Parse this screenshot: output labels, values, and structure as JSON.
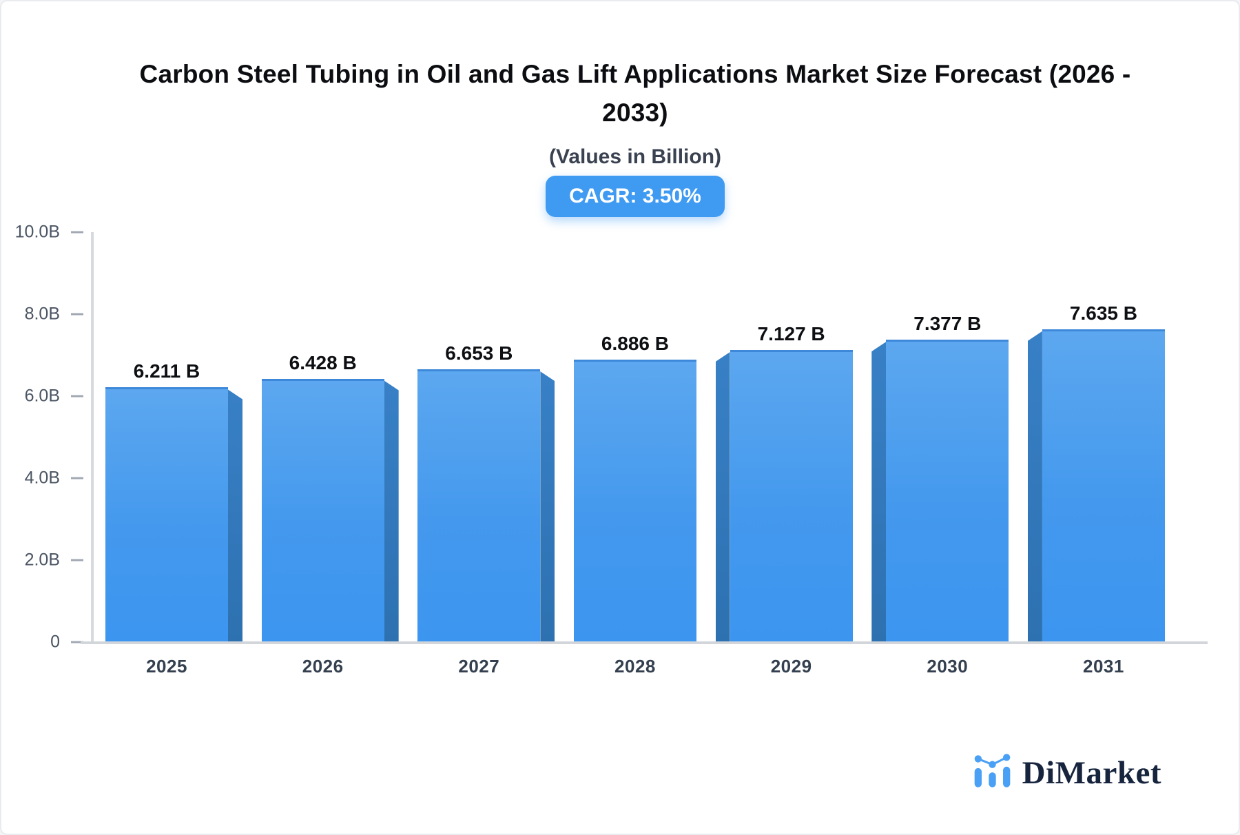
{
  "header": {
    "title_line1": "Carbon Steel Tubing in Oil and Gas Lift Applications Market Size Forecast (2026 -",
    "title_line2": "2033)",
    "subtitle": "(Values in Billion)",
    "cagr_badge": "CAGR: 3.50%"
  },
  "chart_data": {
    "type": "bar",
    "title": "Carbon Steel Tubing in Oil and Gas Lift Applications Market Size Forecast (2026 - 2033)",
    "subtitle": "(Values in Billion)",
    "cagr_percent": 3.5,
    "categories": [
      "2025",
      "2026",
      "2027",
      "2028",
      "2029",
      "2030",
      "2031"
    ],
    "values": [
      6.211,
      6.428,
      6.653,
      6.886,
      7.127,
      7.377,
      7.635
    ],
    "value_labels": [
      "6.211 B",
      "6.428 B",
      "6.653 B",
      "6.886 B",
      "7.127 B",
      "7.377 B",
      "7.635 B"
    ],
    "xlabel": "",
    "ylabel": "",
    "ylim": [
      0,
      10
    ],
    "yticks": [
      0,
      2,
      4,
      6,
      8,
      10
    ],
    "ytick_labels": [
      "0",
      "2.0B",
      "4.0B",
      "6.0B",
      "8.0B",
      "10.0B"
    ],
    "grid": false,
    "legend": "none",
    "bar_style": "3d",
    "colors": {
      "bar_face_top": "#5ca7ef",
      "bar_face_bottom": "#3c95ef",
      "bar_top_edge": "#3e88da",
      "bar_side": "#2e74b5",
      "axis": "#d2d6db",
      "tick_text": "#4b5563",
      "badge_bg": "#3f9af2",
      "badge_text": "#ffffff"
    }
  },
  "branding": {
    "logo_text": "DiMarket",
    "logo_icon": "bar-line-chart-icon",
    "logo_color": "#4aa0f5",
    "logo_text_color": "#17243e"
  }
}
